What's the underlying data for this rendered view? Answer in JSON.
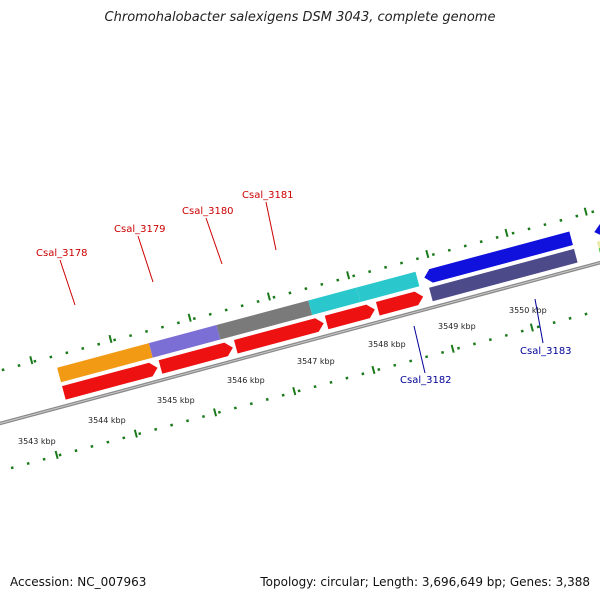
{
  "header": {
    "title": "Chromohalobacter salexigens DSM 3043, complete genome"
  },
  "footer": {
    "accession": "Accession: NC_007963",
    "stats": "Topology: circular; Length: 3,696,649 bp; Genes: 3,388"
  },
  "ruler": {
    "labels": [
      "3543 kbp",
      "3544 kbp",
      "3545 kbp",
      "3546 kbp",
      "3547 kbp",
      "3548 kbp",
      "3549 kbp",
      "3550 kbp"
    ]
  },
  "genes": {
    "labels": [
      {
        "id": "csal-3178",
        "text": "Csal_3178",
        "strand": "forward"
      },
      {
        "id": "csal-3179",
        "text": "Csal_3179",
        "strand": "forward"
      },
      {
        "id": "csal-3180",
        "text": "Csal_3180",
        "strand": "forward"
      },
      {
        "id": "csal-3181",
        "text": "Csal_3181",
        "strand": "forward"
      },
      {
        "id": "csal-3182",
        "text": "Csal_3182",
        "strand": "reverse"
      },
      {
        "id": "csal-3183",
        "text": "Csal_3183",
        "strand": "reverse"
      }
    ]
  },
  "colors": {
    "forward_label": "#cc0000",
    "reverse_label": "#000099",
    "tick": "#1a7a1a",
    "backbone": "#8a8a8a"
  }
}
